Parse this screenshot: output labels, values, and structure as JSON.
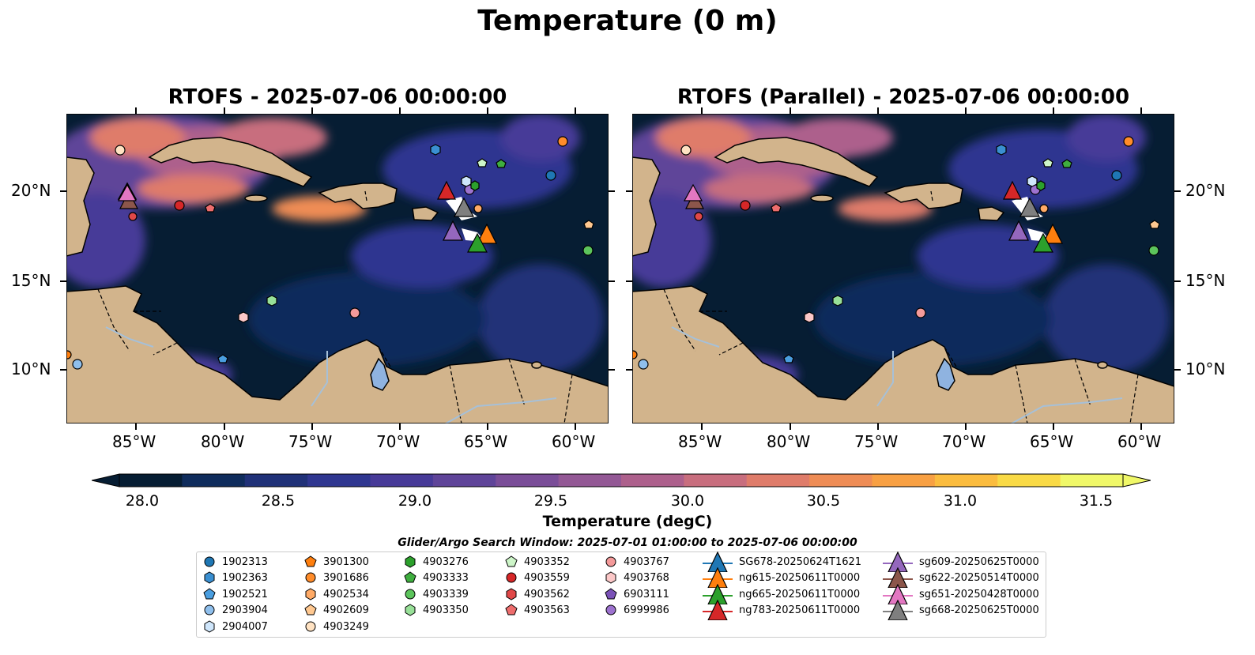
{
  "figure": {
    "title": "Temperature (0 m)"
  },
  "panels": [
    {
      "title": "RTOFS - 2025-07-06 00:00:00"
    },
    {
      "title": "RTOFS (Parallel) - 2025-07-06 00:00:00"
    }
  ],
  "axes": {
    "lat_ticks": [
      "20°N",
      "15°N",
      "10°N"
    ],
    "lon_ticks": [
      "85°W",
      "80°W",
      "75°W",
      "70°W",
      "65°W",
      "60°W"
    ]
  },
  "colorbar": {
    "label": "Temperature (degC)",
    "ticks": [
      "28.0",
      "28.5",
      "29.0",
      "29.5",
      "30.0",
      "30.5",
      "31.0",
      "31.5"
    ],
    "range": [
      28.0,
      31.5
    ],
    "colors": [
      "#061d33",
      "#0f2c5c",
      "#203178",
      "#2f3690",
      "#473a98",
      "#5f4499",
      "#7a4d98",
      "#935895",
      "#ad608c",
      "#c86e7e",
      "#df7c6a",
      "#ee8c55",
      "#f8a043",
      "#fbbc3e",
      "#f9da46",
      "#f0f868"
    ]
  },
  "legend": {
    "title": "Glider/Argo Search Window: 2025-07-01 01:00:00 to 2025-07-06 00:00:00",
    "items": [
      {
        "label": "1902313",
        "shape": "circle",
        "color": "#1f77b4"
      },
      {
        "label": "1902363",
        "shape": "hexagon",
        "color": "#3a8fd1"
      },
      {
        "label": "1902521",
        "shape": "pentagon",
        "color": "#4a9ee0"
      },
      {
        "label": "2903904",
        "shape": "circle",
        "color": "#8fbfec"
      },
      {
        "label": "2904007",
        "shape": "hexagon",
        "color": "#cfe6fb"
      },
      {
        "label": "3901300",
        "shape": "pentagon",
        "color": "#ff7f0e"
      },
      {
        "label": "3901686",
        "shape": "circle",
        "color": "#ff8c2a"
      },
      {
        "label": "4902534",
        "shape": "hexagon",
        "color": "#ffaa66"
      },
      {
        "label": "4902609",
        "shape": "pentagon",
        "color": "#ffc890"
      },
      {
        "label": "4903249",
        "shape": "circle",
        "color": "#ffe2c2"
      },
      {
        "label": "4903276",
        "shape": "hexagon",
        "color": "#2ca02c"
      },
      {
        "label": "4903333",
        "shape": "pentagon",
        "color": "#3fae3f"
      },
      {
        "label": "4903339",
        "shape": "circle",
        "color": "#5cc45c"
      },
      {
        "label": "4903350",
        "shape": "hexagon",
        "color": "#98e098"
      },
      {
        "label": "4903352",
        "shape": "pentagon",
        "color": "#cdf5c8"
      },
      {
        "label": "4903559",
        "shape": "circle",
        "color": "#d62728"
      },
      {
        "label": "4903562",
        "shape": "hexagon",
        "color": "#e04848"
      },
      {
        "label": "4903563",
        "shape": "pentagon",
        "color": "#ee6d6d"
      },
      {
        "label": "4903767",
        "shape": "circle",
        "color": "#f49a9a"
      },
      {
        "label": "4903768",
        "shape": "hexagon",
        "color": "#fcc8c8"
      },
      {
        "label": "6903111",
        "shape": "pentagon",
        "color": "#7b52b8"
      },
      {
        "label": "6999986",
        "shape": "circle",
        "color": "#9d72cf"
      },
      {
        "label": "SG678-20250624T1621",
        "shape": "triangle",
        "color": "#1f77b4"
      },
      {
        "label": "ng615-20250611T0000",
        "shape": "triangle",
        "color": "#ff7f0e"
      },
      {
        "label": "ng665-20250611T0000",
        "shape": "triangle",
        "color": "#2ca02c"
      },
      {
        "label": "ng783-20250611T0000",
        "shape": "triangle",
        "color": "#d62728"
      },
      {
        "label": "sg609-20250625T0000",
        "shape": "triangle",
        "color": "#9467bd"
      },
      {
        "label": "sg622-20250514T0000",
        "shape": "triangle",
        "color": "#8c564b"
      },
      {
        "label": "sg651-20250428T0000",
        "shape": "triangle",
        "color": "#e377c2"
      },
      {
        "label": "sg668-20250625T0000",
        "shape": "triangle",
        "color": "#7f7f7f"
      }
    ]
  },
  "colors": {
    "land": "#d2b48c",
    "ocean_deep": "#061d33",
    "river": "#a6c0d8"
  }
}
